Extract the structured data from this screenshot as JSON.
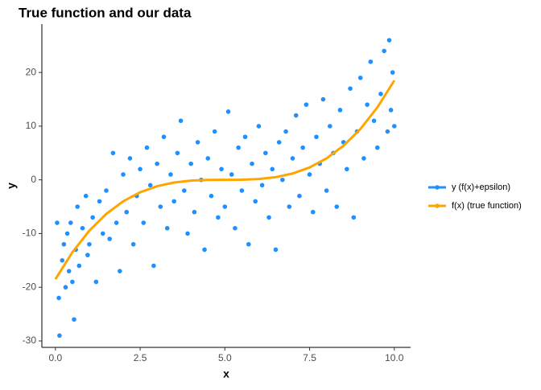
{
  "chart_data": {
    "type": "scatter",
    "title": "True function and our data",
    "x_label": "x",
    "y_label": "y",
    "xlim": [
      -0.4,
      10.48
    ],
    "ylim": [
      -31.2,
      29
    ],
    "xticks": [
      {
        "value": 0,
        "label": "0.0"
      },
      {
        "value": 2.5,
        "label": "2.5"
      },
      {
        "value": 5,
        "label": "5.0"
      },
      {
        "value": 7.5,
        "label": "7.5"
      },
      {
        "value": 10,
        "label": "10.0"
      }
    ],
    "yticks": [
      -30,
      -20,
      -10,
      0,
      10,
      20
    ],
    "grid": false,
    "legend": "right",
    "series": [
      {
        "name": "y (f(x)+epsilon)",
        "type": "scatter",
        "color": "#1E90FF",
        "x": [
          0.05,
          0.1,
          0.12,
          0.2,
          0.25,
          0.3,
          0.35,
          0.4,
          0.45,
          0.5,
          0.55,
          0.6,
          0.65,
          0.7,
          0.8,
          0.9,
          0.95,
          1.0,
          1.1,
          1.2,
          1.3,
          1.4,
          1.5,
          1.6,
          1.7,
          1.8,
          1.9,
          2.0,
          2.1,
          2.2,
          2.3,
          2.4,
          2.5,
          2.6,
          2.7,
          2.8,
          2.9,
          3.0,
          3.1,
          3.2,
          3.3,
          3.4,
          3.5,
          3.6,
          3.7,
          3.8,
          3.9,
          4.0,
          4.1,
          4.2,
          4.3,
          4.4,
          4.5,
          4.6,
          4.7,
          4.8,
          4.9,
          5.0,
          5.1,
          5.2,
          5.3,
          5.4,
          5.5,
          5.6,
          5.7,
          5.8,
          5.9,
          6.0,
          6.1,
          6.2,
          6.3,
          6.4,
          6.5,
          6.6,
          6.7,
          6.8,
          6.9,
          7.0,
          7.1,
          7.2,
          7.3,
          7.4,
          7.5,
          7.6,
          7.7,
          7.8,
          7.9,
          8.0,
          8.1,
          8.2,
          8.3,
          8.4,
          8.5,
          8.6,
          8.7,
          8.8,
          8.9,
          9.0,
          9.1,
          9.2,
          9.3,
          9.4,
          9.5,
          9.6,
          9.7,
          9.8,
          9.85,
          9.9,
          9.95,
          10.0
        ],
        "values": [
          -8,
          -22,
          -29,
          -15,
          -12,
          -20,
          -10,
          -17,
          -8,
          -19,
          -26,
          -13,
          -5,
          -16,
          -9,
          -3,
          -14,
          -12,
          -7,
          -19,
          -4,
          -10,
          -2,
          -11,
          5,
          -8,
          -17,
          1,
          -6,
          4,
          -12,
          -3,
          2,
          -8,
          6,
          -1,
          -16,
          3,
          -5,
          8,
          -9,
          1,
          -4,
          5,
          11,
          -2,
          -10,
          3,
          -6,
          7,
          0,
          -13,
          4,
          -3,
          9,
          -7,
          2,
          -5,
          12.7,
          1,
          -9,
          6,
          -2,
          8,
          -12,
          3,
          -4,
          10,
          -1,
          5,
          -7,
          2,
          -13,
          7,
          0,
          9,
          -5,
          4,
          12,
          -3,
          6,
          14,
          1,
          -6,
          8,
          3,
          15,
          -2,
          10,
          5,
          -5,
          13,
          7,
          2,
          17,
          -7,
          9,
          19,
          4,
          14,
          22,
          11,
          6,
          16,
          24,
          9,
          26,
          13,
          20,
          10
        ]
      },
      {
        "name": "f(x) (true function)",
        "type": "line",
        "color": "#FFA500",
        "x": [
          0,
          0.5,
          1,
          1.5,
          2,
          2.5,
          3,
          3.5,
          4,
          4.5,
          5,
          5.5,
          6,
          6.5,
          7,
          7.5,
          8,
          8.5,
          9,
          9.5,
          10
        ],
        "values": [
          -18.5,
          -13.49,
          -9.47,
          -6.35,
          -4.0,
          -2.31,
          -1.18,
          -0.5,
          -0.15,
          -0.02,
          0,
          0.02,
          0.15,
          0.5,
          1.18,
          2.31,
          4.0,
          6.35,
          9.47,
          13.49,
          18.5
        ]
      }
    ]
  }
}
